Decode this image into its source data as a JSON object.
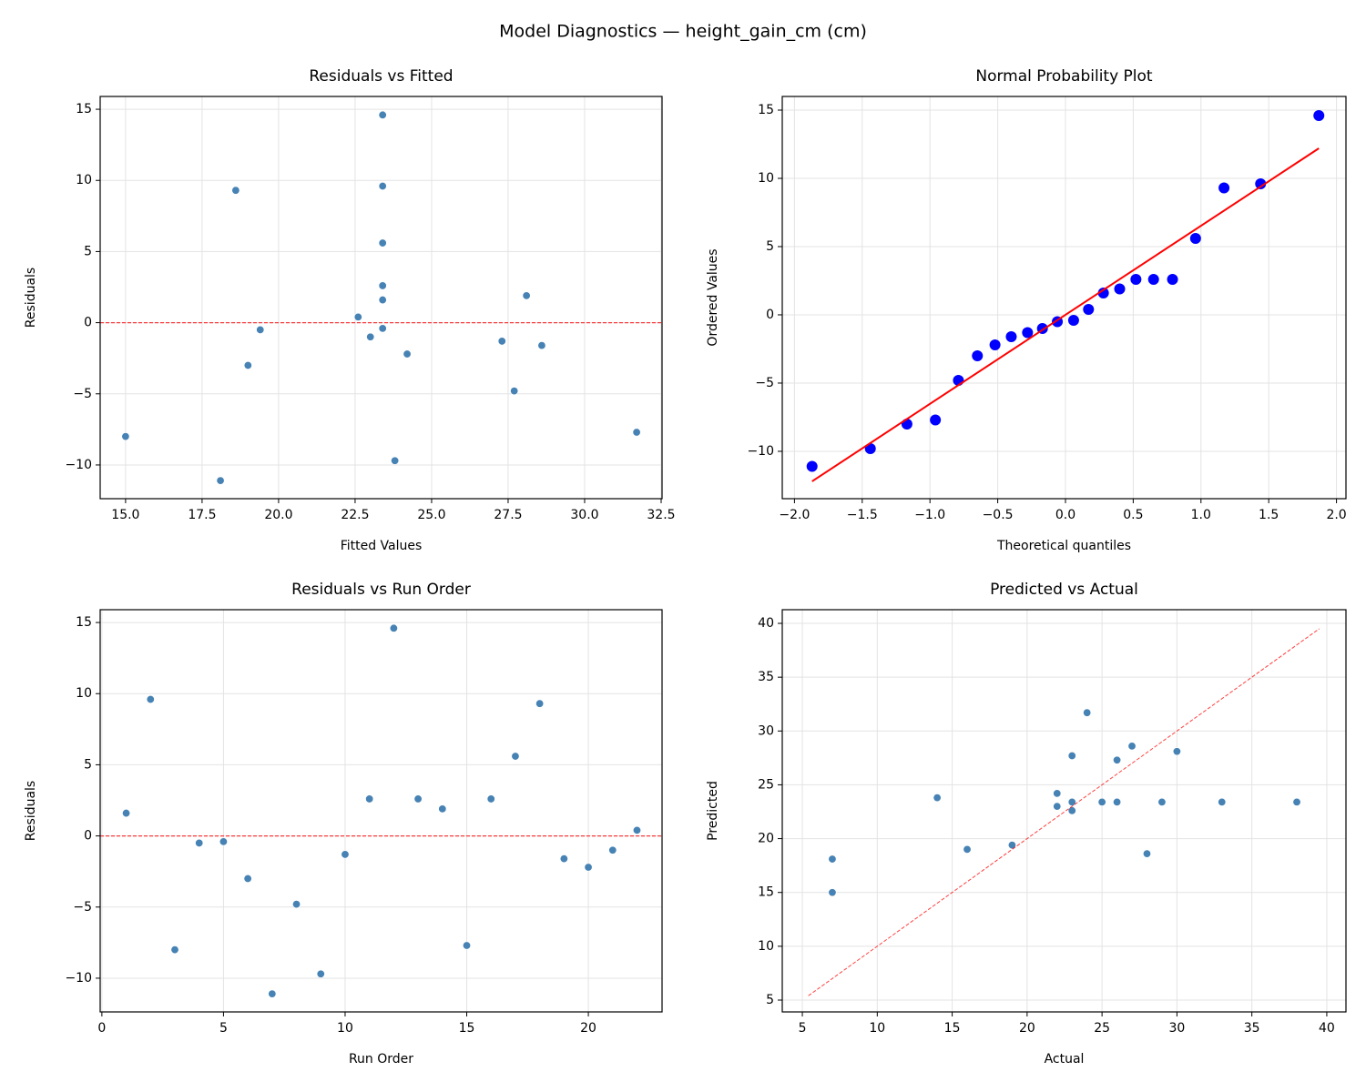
{
  "title": "Model Diagnostics — height_gain_cm (cm)",
  "chart_data": [
    {
      "type": "scatter",
      "title": "Residuals vs Fitted",
      "x_label": "Fitted Values",
      "y_label": "Residuals",
      "grid": true,
      "xlim": [
        14.17,
        32.53
      ],
      "ylim": [
        -12.37,
        15.9
      ],
      "xticks": [
        {
          "value": 15,
          "label": "15.0"
        },
        {
          "value": 17.5,
          "label": "17.5"
        },
        {
          "value": 20,
          "label": "20.0"
        },
        {
          "value": 22.5,
          "label": "22.5"
        },
        {
          "value": 25,
          "label": "25.0"
        },
        {
          "value": 27.5,
          "label": "27.5"
        },
        {
          "value": 30,
          "label": "30.0"
        },
        {
          "value": 32.5,
          "label": "32.5"
        }
      ],
      "yticks": [
        {
          "value": -10,
          "label": "−10"
        },
        {
          "value": -5,
          "label": "−5"
        },
        0,
        5,
        10,
        15
      ],
      "ref_line": {
        "y": 0,
        "color": "#ff0000"
      },
      "series": [
        {
          "color": "#4682b4",
          "mode": "markers",
          "x": [
            23.4,
            23.4,
            15.0,
            19.4,
            23.4,
            19.0,
            18.1,
            27.7,
            23.8,
            27.3,
            23.4,
            23.4,
            23.4,
            28.1,
            31.7,
            23.4,
            23.4,
            18.6,
            28.6,
            24.2,
            23.0,
            22.6
          ],
          "values": [
            1.6,
            9.6,
            -8.0,
            -0.5,
            -0.4,
            -3.0,
            -11.1,
            -4.8,
            -9.7,
            -1.3,
            2.6,
            14.6,
            2.6,
            1.9,
            -7.7,
            2.6,
            5.6,
            9.3,
            -1.6,
            -2.2,
            -1.0,
            0.4
          ]
        }
      ]
    },
    {
      "type": "scatter",
      "title": "Normal Probability Plot",
      "x_label": "Theoretical quantiles",
      "y_label": "Ordered Values",
      "grid": true,
      "xlim": [
        -2.09,
        2.07
      ],
      "ylim": [
        -13.47,
        16.0
      ],
      "xticks": [
        {
          "value": -2,
          "label": "−2.0"
        },
        {
          "value": -1.5,
          "label": "−1.5"
        },
        {
          "value": -1,
          "label": "−1.0"
        },
        {
          "value": -0.5,
          "label": "−0.5"
        },
        {
          "value": 0,
          "label": "0.0"
        },
        {
          "value": 0.5,
          "label": "0.5"
        },
        {
          "value": 1,
          "label": "1.0"
        },
        {
          "value": 1.5,
          "label": "1.5"
        },
        {
          "value": 2,
          "label": "2.0"
        }
      ],
      "yticks": [
        {
          "value": -10,
          "label": "−10"
        },
        {
          "value": -5,
          "label": "−5"
        },
        0,
        5,
        10,
        15
      ],
      "series": [
        {
          "color": "#0000ff",
          "mode": "markers",
          "x": [
            -1.87,
            -1.44,
            -1.17,
            -0.96,
            -0.79,
            -0.65,
            -0.52,
            -0.4,
            -0.28,
            -0.17,
            -0.06,
            0.06,
            0.17,
            0.28,
            0.4,
            0.52,
            0.65,
            0.79,
            0.96,
            1.17,
            1.44,
            1.87
          ],
          "values": [
            -11.1,
            -9.8,
            -8.0,
            -7.7,
            -4.8,
            -3.0,
            -2.2,
            -1.6,
            -1.3,
            -1.0,
            -0.5,
            -0.4,
            0.4,
            1.6,
            1.9,
            2.6,
            2.6,
            2.6,
            5.6,
            9.3,
            9.6,
            14.6
          ]
        },
        {
          "color": "#ff0000",
          "mode": "line",
          "x": [
            -1.87,
            1.87
          ],
          "values": [
            -12.2,
            12.2
          ]
        }
      ]
    },
    {
      "type": "scatter",
      "title": "Residuals vs Run Order",
      "x_label": "Run Order",
      "y_label": "Residuals",
      "grid": true,
      "xlim": [
        -0.07,
        23.03
      ],
      "ylim": [
        -12.37,
        15.9
      ],
      "xticks": [
        0,
        5,
        10,
        15,
        20
      ],
      "yticks": [
        {
          "value": -10,
          "label": "−10"
        },
        {
          "value": -5,
          "label": "−5"
        },
        0,
        5,
        10,
        15
      ],
      "ref_line": {
        "y": 0,
        "color": "#ff0000"
      },
      "series": [
        {
          "color": "#4682b4",
          "mode": "markers",
          "x": [
            1,
            2,
            3,
            4,
            5,
            6,
            7,
            8,
            9,
            10,
            11,
            12,
            13,
            14,
            15,
            16,
            17,
            18,
            19,
            20,
            21,
            22
          ],
          "values": [
            1.6,
            9.6,
            -8.0,
            -0.5,
            -0.4,
            -3.0,
            -11.1,
            -4.8,
            -9.7,
            -1.3,
            2.6,
            14.6,
            2.6,
            1.9,
            -7.7,
            2.6,
            5.6,
            9.3,
            -1.6,
            -2.2,
            -1.0,
            0.4
          ]
        }
      ]
    },
    {
      "type": "scatter",
      "title": "Predicted vs Actual",
      "x_label": "Actual",
      "y_label": "Predicted",
      "grid": true,
      "xlim": [
        3.66,
        41.28
      ],
      "ylim": [
        3.9,
        41.27
      ],
      "xticks": [
        5,
        10,
        15,
        20,
        25,
        30,
        35,
        40
      ],
      "yticks": [
        5,
        10,
        15,
        20,
        25,
        30,
        35,
        40
      ],
      "series": [
        {
          "color": "#4682b4",
          "mode": "markers",
          "x": [
            25,
            33,
            7,
            19,
            23,
            16,
            7,
            23,
            14,
            26,
            26,
            38,
            26,
            30,
            24,
            26,
            29,
            28,
            27,
            22,
            22,
            23
          ],
          "values": [
            23.4,
            23.4,
            15.0,
            19.4,
            23.4,
            19.0,
            18.1,
            27.7,
            23.8,
            27.3,
            23.4,
            23.4,
            23.4,
            28.1,
            31.7,
            23.4,
            23.4,
            18.6,
            28.6,
            24.2,
            23.0,
            22.6
          ]
        },
        {
          "color": "#ff0000",
          "mode": "dashed-line",
          "x": [
            5.4,
            39.5
          ],
          "values": [
            5.4,
            39.5
          ]
        }
      ]
    }
  ]
}
